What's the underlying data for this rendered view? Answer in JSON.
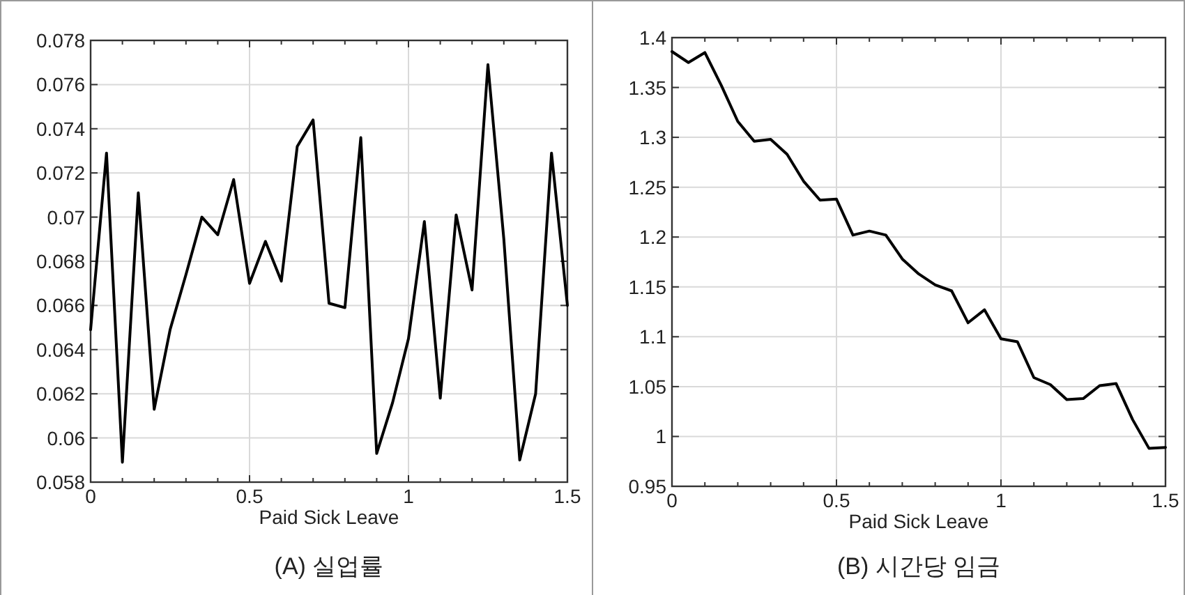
{
  "chart_data": [
    {
      "type": "line",
      "title": "(A) 실업률",
      "xlabel": "Paid Sick Leave",
      "x": [
        0,
        0.05,
        0.1,
        0.15,
        0.2,
        0.25,
        0.3,
        0.35,
        0.4,
        0.45,
        0.5,
        0.55,
        0.6,
        0.65,
        0.7,
        0.75,
        0.8,
        0.85,
        0.9,
        0.95,
        1.0,
        1.05,
        1.1,
        1.15,
        1.2,
        1.25,
        1.3,
        1.35,
        1.4,
        1.45,
        1.5
      ],
      "series": [
        {
          "color": "#000000",
          "values": [
            0.0649,
            0.0729,
            0.0589,
            0.0711,
            0.0613,
            0.0649,
            0.0674,
            0.07,
            0.0692,
            0.0717,
            0.067,
            0.0689,
            0.0671,
            0.0732,
            0.0744,
            0.0661,
            0.0659,
            0.0736,
            0.0593,
            0.0616,
            0.0645,
            0.0698,
            0.0618,
            0.0701,
            0.0667,
            0.0769,
            0.069,
            0.059,
            0.062,
            0.0729,
            0.066
          ]
        }
      ],
      "xlim": [
        0,
        1.5
      ],
      "xticks": [
        0,
        {
          "value": 0.1,
          "label": null
        },
        {
          "value": 0.2,
          "label": null
        },
        {
          "value": 0.3,
          "label": null
        },
        {
          "value": 0.4,
          "label": null
        },
        0.5,
        {
          "value": 0.6,
          "label": null
        },
        {
          "value": 0.7,
          "label": null
        },
        {
          "value": 0.8,
          "label": null
        },
        {
          "value": 0.9,
          "label": null
        },
        1,
        {
          "value": 1.1,
          "label": null
        },
        {
          "value": 1.2,
          "label": null
        },
        {
          "value": 1.3,
          "label": null
        },
        {
          "value": 1.4,
          "label": null
        },
        1.5
      ],
      "ylim": [
        0.058,
        0.078
      ],
      "yticks": [
        0.058,
        0.06,
        0.062,
        0.064,
        0.066,
        0.068,
        0.07,
        0.072,
        0.074,
        0.076,
        0.078
      ],
      "grid": true
    },
    {
      "type": "line",
      "title": "(B) 시간당 임금",
      "xlabel": "Paid Sick Leave",
      "x": [
        0,
        0.05,
        0.1,
        0.15,
        0.2,
        0.25,
        0.3,
        0.35,
        0.4,
        0.45,
        0.5,
        0.55,
        0.6,
        0.65,
        0.7,
        0.75,
        0.8,
        0.85,
        0.9,
        0.95,
        1.0,
        1.05,
        1.1,
        1.15,
        1.2,
        1.25,
        1.3,
        1.35,
        1.4,
        1.45,
        1.5
      ],
      "series": [
        {
          "color": "#000000",
          "values": [
            1.386,
            1.375,
            1.385,
            1.352,
            1.316,
            1.296,
            1.298,
            1.283,
            1.256,
            1.237,
            1.238,
            1.202,
            1.206,
            1.202,
            1.178,
            1.163,
            1.152,
            1.146,
            1.114,
            1.127,
            1.098,
            1.095,
            1.059,
            1.052,
            1.037,
            1.038,
            1.051,
            1.053,
            1.017,
            0.988,
            0.989
          ]
        }
      ],
      "xlim": [
        0,
        1.5
      ],
      "xticks": [
        0,
        {
          "value": 0.1,
          "label": null
        },
        {
          "value": 0.2,
          "label": null
        },
        {
          "value": 0.3,
          "label": null
        },
        {
          "value": 0.4,
          "label": null
        },
        0.5,
        {
          "value": 0.6,
          "label": null
        },
        {
          "value": 0.7,
          "label": null
        },
        {
          "value": 0.8,
          "label": null
        },
        {
          "value": 0.9,
          "label": null
        },
        1,
        {
          "value": 1.1,
          "label": null
        },
        {
          "value": 1.2,
          "label": null
        },
        {
          "value": 1.3,
          "label": null
        },
        {
          "value": 1.4,
          "label": null
        },
        1.5
      ],
      "ylim": [
        0.95,
        1.4
      ],
      "yticks": [
        0.95,
        1,
        1.05,
        1.1,
        1.15,
        1.2,
        1.25,
        1.3,
        1.35,
        1.4
      ],
      "grid": true
    }
  ]
}
